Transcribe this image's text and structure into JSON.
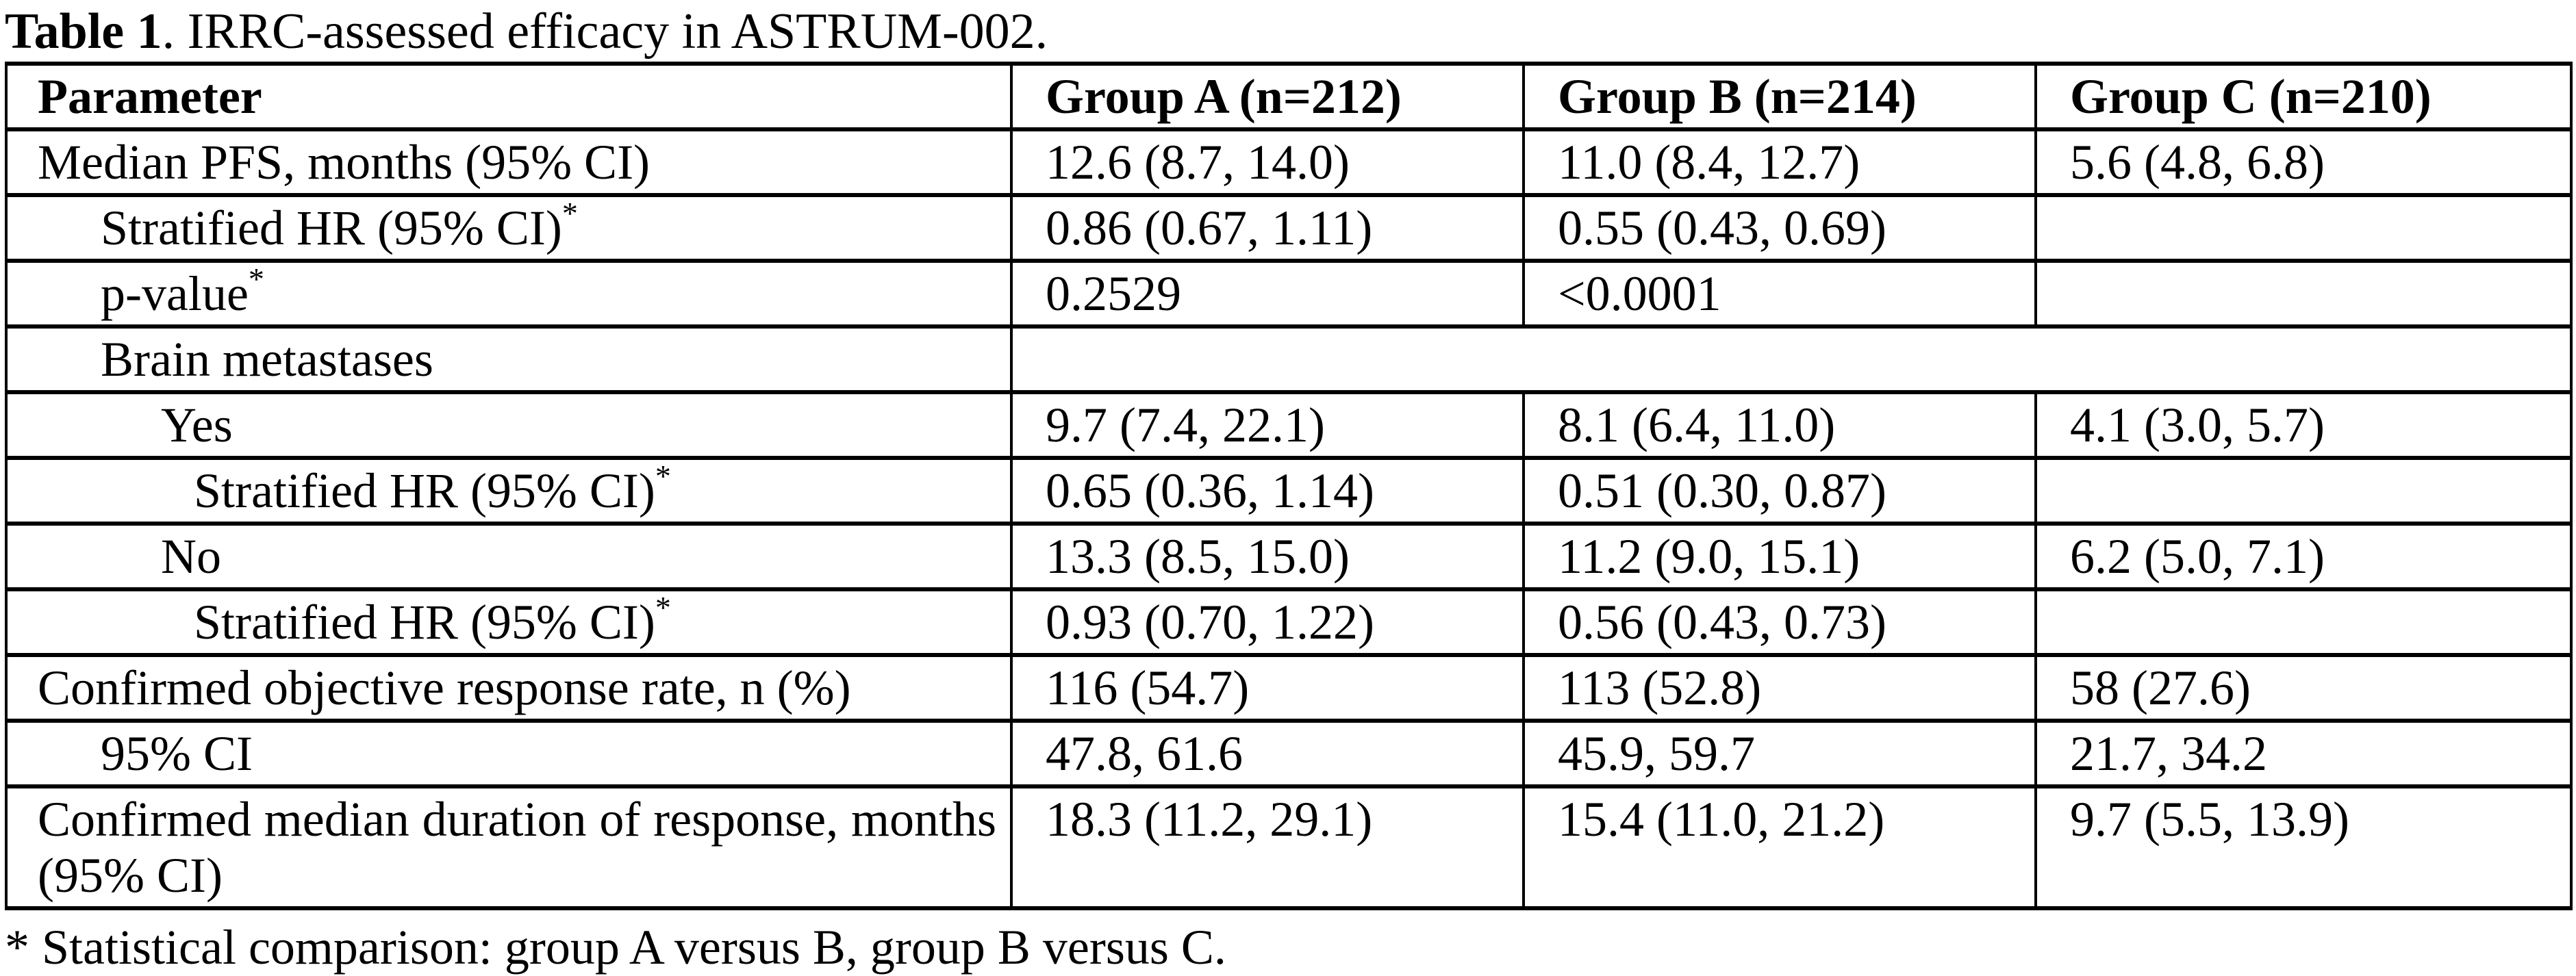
{
  "page": {
    "title_bold": "Table 1",
    "title_rest": ". IRRC-assessed efficacy in ASTRUM-002.",
    "footnote": "* Statistical comparison: group A versus B, group B versus C."
  },
  "table": {
    "columns": [
      "Parameter",
      "Group A (n=212)",
      "Group B (n=214)",
      "Group C (n=210)"
    ],
    "rows": [
      {
        "label": "Median PFS, months (95% CI)",
        "sup": "",
        "indent": 0,
        "merged": false,
        "justify": false,
        "a": "12.6 (8.7, 14.0)",
        "b": "11.0 (8.4, 12.7)",
        "c": "5.6 (4.8, 6.8)"
      },
      {
        "label": "Stratified HR (95% CI)",
        "sup": "*",
        "indent": 1,
        "merged": false,
        "justify": false,
        "a": "0.86 (0.67, 1.11)",
        "b": "0.55 (0.43, 0.69)",
        "c": ""
      },
      {
        "label": "p-value",
        "sup": "*",
        "indent": 1,
        "merged": false,
        "justify": false,
        "a": "0.2529",
        "b": "<0.0001",
        "c": ""
      },
      {
        "label": "Brain metastases",
        "sup": "",
        "indent": 1,
        "merged": true,
        "justify": false,
        "a": "",
        "b": "",
        "c": ""
      },
      {
        "label": "Yes",
        "sup": "",
        "indent": 2,
        "merged": false,
        "justify": false,
        "a": "9.7 (7.4, 22.1)",
        "b": "8.1 (6.4, 11.0)",
        "c": "4.1 (3.0, 5.7)"
      },
      {
        "label": "Stratified HR (95% CI)",
        "sup": "*",
        "indent": 3,
        "merged": false,
        "justify": false,
        "a": "0.65 (0.36, 1.14)",
        "b": "0.51 (0.30, 0.87)",
        "c": ""
      },
      {
        "label": "No",
        "sup": "",
        "indent": 2,
        "merged": false,
        "justify": false,
        "a": "13.3 (8.5, 15.0)",
        "b": "11.2 (9.0, 15.1)",
        "c": "6.2 (5.0, 7.1)"
      },
      {
        "label": "Stratified HR (95% CI)",
        "sup": "*",
        "indent": 3,
        "merged": false,
        "justify": false,
        "a": "0.93 (0.70, 1.22)",
        "b": "0.56 (0.43, 0.73)",
        "c": ""
      },
      {
        "label": "Confirmed objective response rate, n (%)",
        "sup": "",
        "indent": 0,
        "merged": false,
        "justify": false,
        "a": "116 (54.7)",
        "b": "113 (52.8)",
        "c": "58 (27.6)"
      },
      {
        "label": "95% CI",
        "sup": "",
        "indent": 1,
        "merged": false,
        "justify": false,
        "a": "47.8, 61.6",
        "b": "45.9, 59.7",
        "c": "21.7, 34.2"
      },
      {
        "label": "Confirmed median duration of response, months (95% CI)",
        "sup": "",
        "indent": 0,
        "merged": false,
        "justify": true,
        "a": "18.3 (11.2, 29.1)",
        "b": "15.4 (11.0, 21.2)",
        "c": "9.7 (5.5, 13.9)"
      }
    ]
  }
}
